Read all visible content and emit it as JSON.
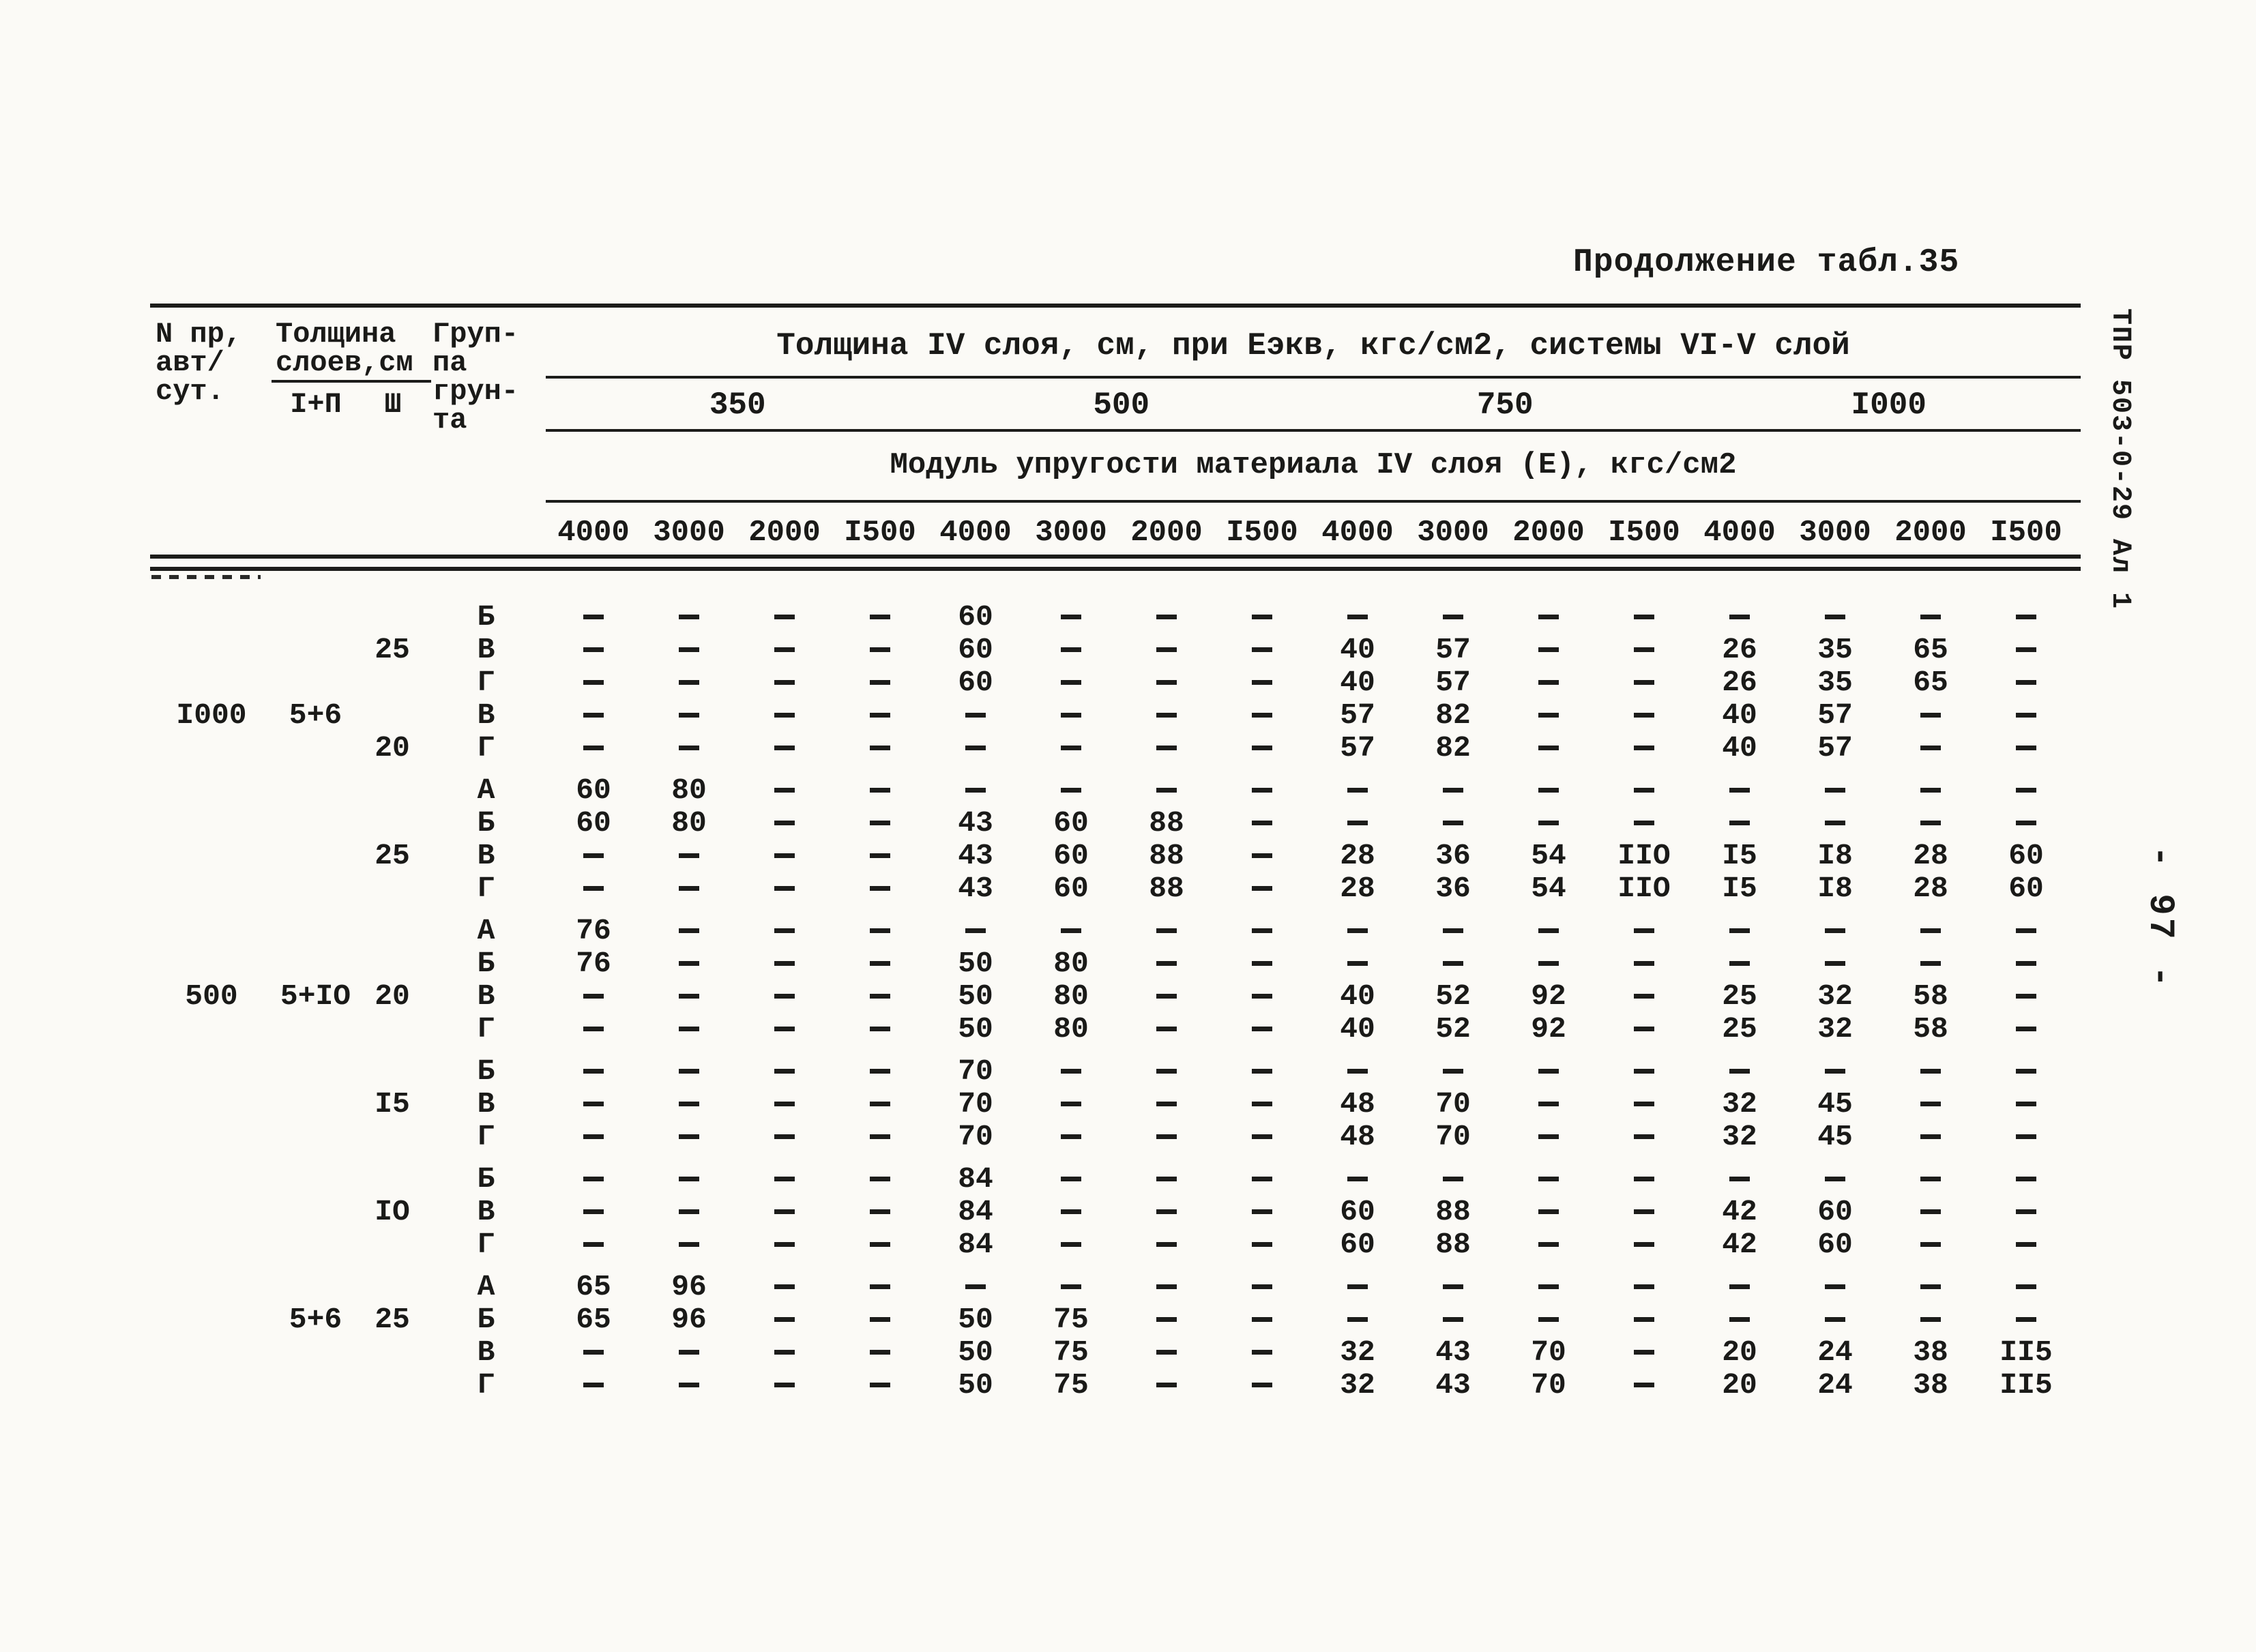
{
  "page": {
    "title": "Продолжение табл.35",
    "side_label": "ТПР 503-0-29 Ал 1",
    "page_number": "- 97 -"
  },
  "table": {
    "col_traffic": [
      "N пр,",
      "авт/",
      "сут."
    ],
    "col_layers": [
      "Толщина",
      "слоев,см"
    ],
    "col_layers_sub": [
      "I+П",
      "Ш"
    ],
    "col_soil": [
      "Груп-",
      "па",
      "грун-",
      "та"
    ],
    "span_title": "Толщина IV слоя, см, при Еэкв, кгс/см2, системы VI-V слой",
    "eekv_values": [
      "350",
      "500",
      "750",
      "I000"
    ],
    "modulus_title": "Модуль упругости материала IV слоя (Е), кгс/см2",
    "modulus_values": [
      "4000",
      "3000",
      "2000",
      "I500",
      "4000",
      "3000",
      "2000",
      "I500",
      "4000",
      "3000",
      "2000",
      "I500",
      "4000",
      "3000",
      "2000",
      "I500"
    ],
    "groups": [
      {
        "rows": [
          {
            "soil": "Б",
            "v": [
              "-",
              "-",
              "-",
              "-",
              "60",
              "-",
              "-",
              "-",
              "-",
              "-",
              "-",
              "-",
              "-",
              "-",
              "-",
              "-"
            ]
          },
          {
            "l3": "25",
            "soil": "В",
            "v": [
              "-",
              "-",
              "-",
              "-",
              "60",
              "-",
              "-",
              "-",
              "40",
              "57",
              "-",
              "-",
              "26",
              "35",
              "65",
              "-"
            ]
          },
          {
            "soil": "Г",
            "v": [
              "-",
              "-",
              "-",
              "-",
              "60",
              "-",
              "-",
              "-",
              "40",
              "57",
              "-",
              "-",
              "26",
              "35",
              "65",
              "-"
            ]
          },
          {
            "traffic": "I000",
            "layers": "5+6",
            "soil": "В",
            "v": [
              "-",
              "-",
              "-",
              "-",
              "-",
              "-",
              "-",
              "-",
              "57",
              "82",
              "-",
              "-",
              "40",
              "57",
              "-",
              "-"
            ]
          },
          {
            "l3": "20",
            "soil": "Г",
            "v": [
              "-",
              "-",
              "-",
              "-",
              "-",
              "-",
              "-",
              "-",
              "57",
              "82",
              "-",
              "-",
              "40",
              "57",
              "-",
              "-"
            ]
          }
        ]
      },
      {
        "rows": [
          {
            "soil": "А",
            "v": [
              "60",
              "80",
              "-",
              "-",
              "-",
              "-",
              "-",
              "-",
              "-",
              "-",
              "-",
              "-",
              "-",
              "-",
              "-",
              "-"
            ]
          },
          {
            "soil": "Б",
            "v": [
              "60",
              "80",
              "-",
              "-",
              "43",
              "60",
              "88",
              "-",
              "-",
              "-",
              "-",
              "-",
              "-",
              "-",
              "-",
              "-"
            ]
          },
          {
            "l3": "25",
            "soil": "В",
            "v": [
              "-",
              "-",
              "-",
              "-",
              "43",
              "60",
              "88",
              "-",
              "28",
              "36",
              "54",
              "IIO",
              "I5",
              "I8",
              "28",
              "60"
            ]
          },
          {
            "soil": "Г",
            "v": [
              "-",
              "-",
              "-",
              "-",
              "43",
              "60",
              "88",
              "-",
              "28",
              "36",
              "54",
              "IIO",
              "I5",
              "I8",
              "28",
              "60"
            ]
          }
        ]
      },
      {
        "rows": [
          {
            "soil": "А",
            "v": [
              "76",
              "-",
              "-",
              "-",
              "-",
              "-",
              "-",
              "-",
              "-",
              "-",
              "-",
              "-",
              "-",
              "-",
              "-",
              "-"
            ]
          },
          {
            "soil": "Б",
            "v": [
              "76",
              "-",
              "-",
              "-",
              "50",
              "80",
              "-",
              "-",
              "-",
              "-",
              "-",
              "-",
              "-",
              "-",
              "-",
              "-"
            ]
          },
          {
            "traffic": "500",
            "layers": "5+IO",
            "l3": "20",
            "soil": "В",
            "v": [
              "-",
              "-",
              "-",
              "-",
              "50",
              "80",
              "-",
              "-",
              "40",
              "52",
              "92",
              "-",
              "25",
              "32",
              "58",
              "-"
            ]
          },
          {
            "soil": "Г",
            "v": [
              "-",
              "-",
              "-",
              "-",
              "50",
              "80",
              "-",
              "-",
              "40",
              "52",
              "92",
              "-",
              "25",
              "32",
              "58",
              "-"
            ]
          }
        ]
      },
      {
        "rows": [
          {
            "soil": "Б",
            "v": [
              "-",
              "-",
              "-",
              "-",
              "70",
              "-",
              "-",
              "-",
              "-",
              "-",
              "-",
              "-",
              "-",
              "-",
              "-",
              "-"
            ]
          },
          {
            "l3": "I5",
            "soil": "В",
            "v": [
              "-",
              "-",
              "-",
              "-",
              "70",
              "-",
              "-",
              "-",
              "48",
              "70",
              "-",
              "-",
              "32",
              "45",
              "-",
              "-"
            ]
          },
          {
            "soil": "Г",
            "v": [
              "-",
              "-",
              "-",
              "-",
              "70",
              "-",
              "-",
              "-",
              "48",
              "70",
              "-",
              "-",
              "32",
              "45",
              "-",
              "-"
            ]
          }
        ]
      },
      {
        "rows": [
          {
            "soil": "Б",
            "v": [
              "-",
              "-",
              "-",
              "-",
              "84",
              "-",
              "-",
              "-",
              "-",
              "-",
              "-",
              "-",
              "-",
              "-",
              "-",
              "-"
            ]
          },
          {
            "l3": "IO",
            "soil": "В",
            "v": [
              "-",
              "-",
              "-",
              "-",
              "84",
              "-",
              "-",
              "-",
              "60",
              "88",
              "-",
              "-",
              "42",
              "60",
              "-",
              "-"
            ]
          },
          {
            "soil": "Г",
            "v": [
              "-",
              "-",
              "-",
              "-",
              "84",
              "-",
              "-",
              "-",
              "60",
              "88",
              "-",
              "-",
              "42",
              "60",
              "-",
              "-"
            ]
          }
        ]
      },
      {
        "rows": [
          {
            "soil": "А",
            "v": [
              "65",
              "96",
              "-",
              "-",
              "-",
              "-",
              "-",
              "-",
              "-",
              "-",
              "-",
              "-",
              "-",
              "-",
              "-",
              "-"
            ]
          },
          {
            "layers": "5+6",
            "l3": "25",
            "soil": "Б",
            "v": [
              "65",
              "96",
              "-",
              "-",
              "50",
              "75",
              "-",
              "-",
              "-",
              "-",
              "-",
              "-",
              "-",
              "-",
              "-",
              "-"
            ]
          },
          {
            "soil": "В",
            "v": [
              "-",
              "-",
              "-",
              "-",
              "50",
              "75",
              "-",
              "-",
              "32",
              "43",
              "70",
              "-",
              "20",
              "24",
              "38",
              "II5"
            ]
          },
          {
            "soil": "Г",
            "v": [
              "-",
              "-",
              "-",
              "-",
              "50",
              "75",
              "-",
              "-",
              "32",
              "43",
              "70",
              "-",
              "20",
              "24",
              "38",
              "II5"
            ]
          }
        ]
      }
    ]
  }
}
